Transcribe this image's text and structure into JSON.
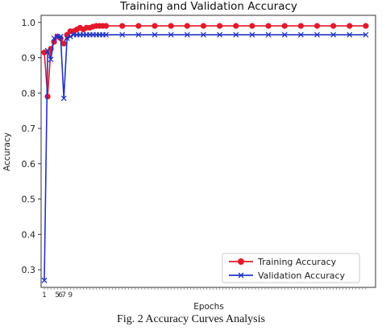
{
  "chart_data": {
    "type": "line",
    "title": "Training and Validation Accuracy",
    "xlabel": "Epochs",
    "ylabel": "Accuracy",
    "ylim": [
      0.25,
      1.02
    ],
    "yticks": [
      0.3,
      0.4,
      0.5,
      0.6,
      0.7,
      0.8,
      0.9,
      1.0
    ],
    "ytick_labels": [
      "0.3",
      "0.4",
      "0.5",
      "0.6",
      "0.7",
      "0.8",
      "0.9",
      "1.0"
    ],
    "xtick_labels_visible": [
      "1",
      "5",
      "6",
      "7",
      "9"
    ],
    "grid": false,
    "legend_position": "lower-right",
    "series": [
      {
        "name": "Training Accuracy",
        "color": "#e3192b",
        "marker": "circle",
        "x": [
          1,
          2,
          3,
          4,
          5,
          6,
          7,
          8,
          9,
          10,
          11,
          12,
          13,
          14,
          15,
          16,
          17,
          18,
          19,
          20,
          25,
          30,
          35,
          40,
          45,
          50,
          55,
          60,
          65,
          70,
          75,
          80,
          85,
          90,
          95,
          100
        ],
        "y": [
          0.915,
          0.79,
          0.925,
          0.945,
          0.96,
          0.955,
          0.94,
          0.965,
          0.975,
          0.975,
          0.98,
          0.985,
          0.98,
          0.985,
          0.985,
          0.988,
          0.99,
          0.99,
          0.99,
          0.99,
          0.99,
          0.99,
          0.99,
          0.99,
          0.99,
          0.99,
          0.99,
          0.99,
          0.99,
          0.99,
          0.99,
          0.99,
          0.99,
          0.99,
          0.99,
          0.99
        ]
      },
      {
        "name": "Validation Accuracy",
        "color": "#2234c4",
        "marker": "x",
        "x": [
          1,
          2,
          3,
          4,
          5,
          6,
          7,
          8,
          9,
          10,
          11,
          12,
          13,
          14,
          15,
          16,
          17,
          18,
          19,
          20,
          25,
          30,
          35,
          40,
          45,
          50,
          55,
          60,
          65,
          70,
          75,
          80,
          85,
          90,
          95,
          100
        ],
        "y": [
          0.27,
          0.92,
          0.895,
          0.955,
          0.96,
          0.96,
          0.785,
          0.955,
          0.96,
          0.965,
          0.965,
          0.965,
          0.965,
          0.965,
          0.965,
          0.965,
          0.965,
          0.965,
          0.965,
          0.965,
          0.965,
          0.965,
          0.965,
          0.965,
          0.965,
          0.965,
          0.965,
          0.965,
          0.965,
          0.965,
          0.965,
          0.965,
          0.965,
          0.965,
          0.965,
          0.965
        ]
      }
    ]
  },
  "caption": "Fig. 2  Accuracy Curves Analysis"
}
